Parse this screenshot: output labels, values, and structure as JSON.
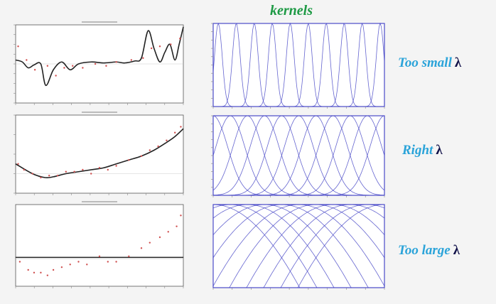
{
  "title": "kernels",
  "labels": {
    "too_small": "Too small",
    "right": "Right",
    "too_large": "Too large",
    "lambda": "λ"
  },
  "colors": {
    "title": "#1e9a45",
    "label": "#2aa3d9",
    "lambda": "#12124a",
    "kernel": "#4a4ac8",
    "fit": "#222222"
  },
  "chart_data": [
    {
      "type": "line",
      "panel": "left-top",
      "title": "RMSE = ... (caption too small to read)",
      "xlim": [
        -1,
        1
      ],
      "ylim": [
        -2,
        2
      ],
      "yticks": [
        -2,
        -1.5,
        -1,
        -0.5,
        0,
        0.5,
        1,
        1.5,
        2
      ],
      "points_x": [
        -0.97,
        -0.87,
        -0.77,
        -0.62,
        -0.52,
        -0.42,
        -0.32,
        -0.2,
        -0.05,
        0.08,
        0.2,
        0.38,
        0.52,
        0.62,
        0.72,
        0.85,
        0.96
      ],
      "points_y": [
        0.9,
        0.2,
        -0.3,
        -0.1,
        -0.6,
        -0.2,
        -0.1,
        -0.2,
        0.0,
        -0.1,
        0.1,
        0.2,
        0.3,
        0.8,
        0.9,
        1.0,
        1.3
      ],
      "series": [
        {
          "x": [
            -1,
            -0.92,
            -0.85,
            -0.78,
            -0.7,
            -0.64,
            -0.55,
            -0.45,
            -0.35,
            -0.25,
            -0.1,
            0.05,
            0.2,
            0.3,
            0.42,
            0.5,
            0.58,
            0.65,
            0.72,
            0.78,
            0.84,
            0.9,
            0.95,
            1.0
          ],
          "y": [
            0.2,
            0.1,
            -0.2,
            -0.05,
            0.0,
            -1.1,
            -0.3,
            0.1,
            -0.3,
            0.0,
            0.1,
            0.05,
            0.1,
            0.05,
            0.15,
            0.3,
            1.7,
            0.8,
            0.1,
            0.6,
            1.0,
            0.2,
            1.0,
            1.9
          ]
        }
      ]
    },
    {
      "type": "line",
      "panel": "left-middle",
      "title": "RMSE = ... (caption too small to read)",
      "xlim": [
        -1,
        1
      ],
      "ylim": [
        -0.5,
        1.5
      ],
      "yticks": [
        -0.5,
        0,
        0.5,
        1,
        1.5
      ],
      "points_x": [
        -0.97,
        -0.9,
        -0.8,
        -0.7,
        -0.6,
        -0.5,
        -0.4,
        -0.3,
        -0.2,
        -0.1,
        0.0,
        0.1,
        0.2,
        0.35,
        0.5,
        0.6,
        0.7,
        0.8,
        0.9,
        0.97
      ],
      "points_y": [
        0.25,
        0.1,
        0.0,
        -0.1,
        -0.05,
        -0.05,
        0.05,
        0.05,
        0.1,
        0.0,
        0.15,
        0.1,
        0.2,
        0.35,
        0.45,
        0.6,
        0.7,
        0.85,
        1.05,
        1.2
      ],
      "series": [
        {
          "x": [
            -1,
            -0.8,
            -0.65,
            -0.55,
            -0.4,
            -0.25,
            -0.1,
            0.05,
            0.2,
            0.35,
            0.5,
            0.65,
            0.8,
            0.9,
            1.0
          ],
          "y": [
            0.25,
            0.0,
            -0.1,
            -0.08,
            0.0,
            0.05,
            0.1,
            0.15,
            0.25,
            0.35,
            0.45,
            0.6,
            0.8,
            0.95,
            1.15
          ]
        }
      ]
    },
    {
      "type": "line",
      "panel": "left-bottom",
      "title": "RMSE = ... (caption too small to read)",
      "xlim": [
        -1,
        1
      ],
      "ylim": [
        -0.5,
        1.0
      ],
      "points_x": [
        -0.95,
        -0.85,
        -0.78,
        -0.7,
        -0.62,
        -0.55,
        -0.45,
        -0.35,
        -0.25,
        -0.15,
        0.0,
        0.1,
        0.2,
        0.35,
        0.5,
        0.6,
        0.72,
        0.82,
        0.92,
        0.97
      ],
      "points_y": [
        -0.05,
        -0.2,
        -0.25,
        -0.25,
        -0.3,
        -0.2,
        -0.15,
        -0.1,
        -0.05,
        -0.1,
        0.05,
        -0.05,
        -0.05,
        0.05,
        0.2,
        0.3,
        0.4,
        0.5,
        0.6,
        0.8
      ],
      "series": [
        {
          "x": [
            -1,
            1
          ],
          "y": [
            0.03,
            0.03
          ]
        }
      ]
    },
    {
      "type": "line",
      "panel": "right-top",
      "kernel": "gaussian",
      "xlim": [
        -1,
        1
      ],
      "ylim": [
        0,
        1
      ],
      "yticks": [
        0,
        0.1,
        0.2,
        0.3,
        0.4,
        0.5,
        0.6,
        0.7,
        0.8,
        0.9,
        1.0
      ],
      "centers": [
        -0.94,
        -0.73,
        -0.52,
        -0.31,
        -0.1,
        0.11,
        0.32,
        0.53,
        0.74,
        0.95
      ],
      "width": 0.045
    },
    {
      "type": "line",
      "panel": "right-middle",
      "kernel": "gaussian",
      "xlim": [
        -1,
        1
      ],
      "ylim": [
        0,
        1
      ],
      "yticks": [
        0,
        0.1,
        0.2,
        0.3,
        0.4,
        0.5,
        0.6,
        0.7,
        0.8,
        0.9,
        1.0
      ],
      "centers": [
        -1,
        -0.8,
        -0.6,
        -0.4,
        -0.2,
        0,
        0.2,
        0.4,
        0.6,
        0.8,
        1.0
      ],
      "width": 0.17
    },
    {
      "type": "line",
      "panel": "right-bottom",
      "kernel": "gaussian",
      "xlim": [
        -1,
        1
      ],
      "ylim": [
        0.9,
        1.0
      ],
      "centers": [
        -1,
        -0.8,
        -0.6,
        -0.4,
        -0.2,
        0,
        0.2,
        0.4,
        0.6,
        0.8,
        1.0
      ],
      "width": 2.2
    }
  ]
}
